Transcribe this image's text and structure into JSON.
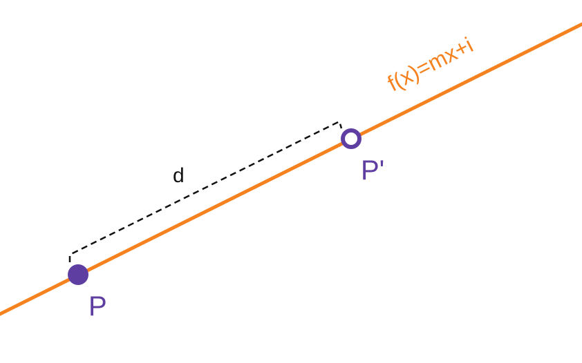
{
  "diagram": {
    "line_label": "f(x)=mx+i",
    "distance_label": "d",
    "point_start_label": "P",
    "point_end_label": "P'"
  },
  "colors": {
    "line": "#f5821f",
    "point": "#5e3ea1",
    "dash": "#111111",
    "text": "#111111"
  }
}
